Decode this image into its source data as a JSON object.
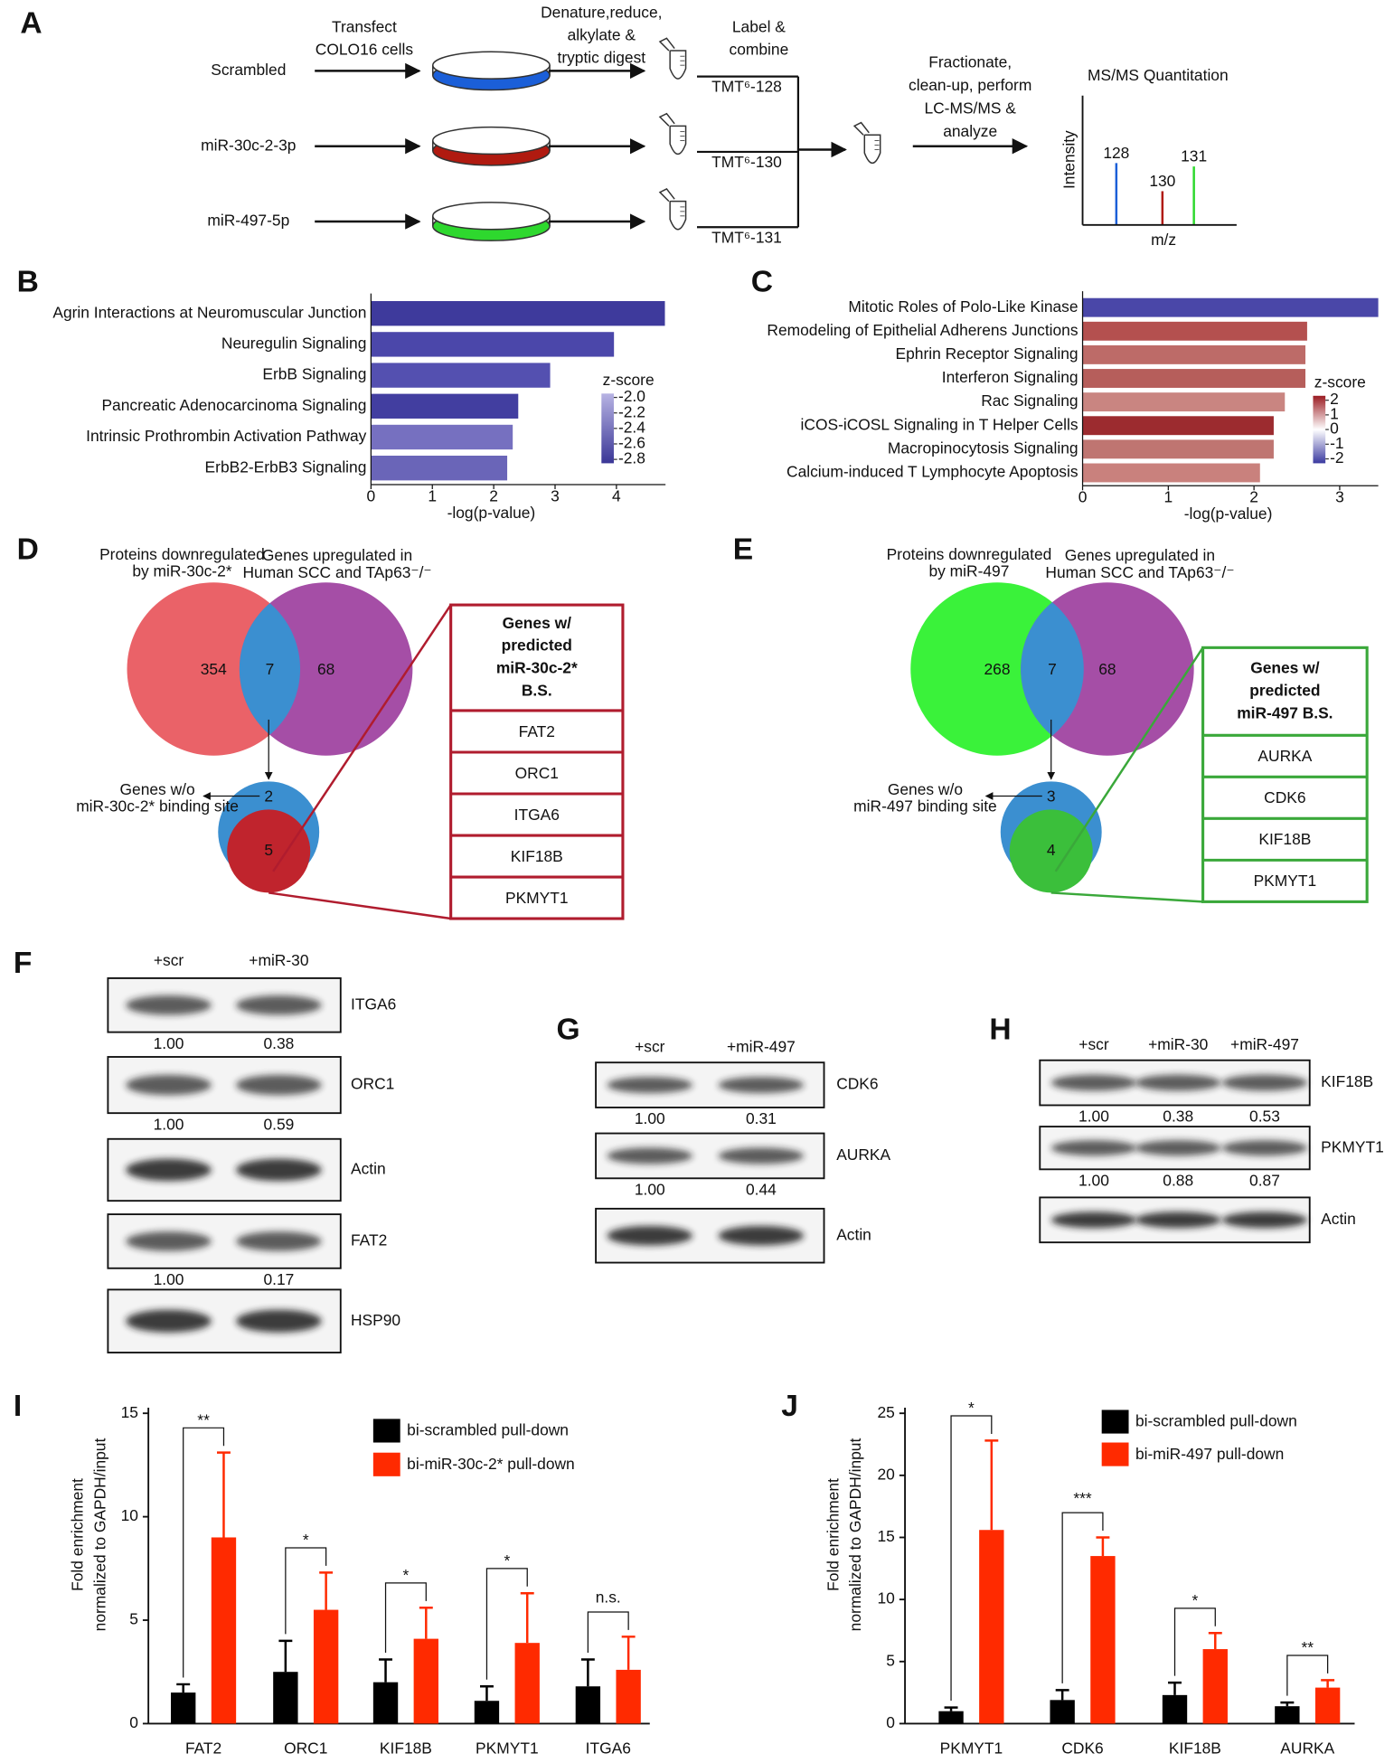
{
  "panel_labels": [
    "A",
    "B",
    "C",
    "D",
    "E",
    "F",
    "G",
    "H",
    "I",
    "J"
  ],
  "diagram": {
    "samples": [
      {
        "name": "Scrambled",
        "color": "#1b5fd8",
        "tag": "TMT⁶-128",
        "peak": "128"
      },
      {
        "name": "miR-30c-2-3p",
        "color": "#b01a10",
        "tag": "TMT⁶-130",
        "peak": "130"
      },
      {
        "name": "miR-497-5p",
        "color": "#2ed82e",
        "tag": "TMT⁶-131",
        "peak": "131"
      }
    ],
    "steps": {
      "transfect": [
        "Transfect",
        "COLO16 cells"
      ],
      "digest": [
        "Denature,reduce,",
        "alkylate &",
        "tryptic digest"
      ],
      "label": [
        "Label &",
        "combine"
      ],
      "fractionate": [
        "Fractionate,",
        "clean-up, perform",
        "LC-MS/MS &",
        "analyze"
      ]
    },
    "quantitation": {
      "title": "MS/MS Quantitation",
      "y_label": "Intensity",
      "x_label": "m/z"
    }
  },
  "venns": [
    {
      "left_label": [
        "Proteins downregulated",
        "by miR-30c-2*"
      ],
      "right_label": [
        "Genes upregulated in",
        "Human SCC and TAp63⁻/⁻"
      ],
      "left_count": 354,
      "overlap_count": 7,
      "right_count": 68,
      "left_color": "#ea6268",
      "right_color": "#a54ea6",
      "overlap_color": "#3b8fd0",
      "without_label": [
        "Genes w/o",
        "miR-30c-2* binding site"
      ],
      "without_count": 2,
      "with_count": 5,
      "with_color": "#c0242d",
      "box_header": [
        "Genes w/",
        "predicted",
        "miR-30c-2*",
        "B.S."
      ],
      "box_items": [
        "FAT2",
        "ORC1",
        "ITGA6",
        "KIF18B",
        "PKMYT1"
      ],
      "box_color": "#b01c2e"
    },
    {
      "left_label": [
        "Proteins downregulated",
        "by miR-497"
      ],
      "right_label": [
        "Genes upregulated in",
        "Human SCC and TAp63⁻/⁻"
      ],
      "left_count": 268,
      "overlap_count": 7,
      "right_count": 68,
      "left_color": "#3af23a",
      "right_color": "#a54ea6",
      "overlap_color": "#3b8fd0",
      "without_label": [
        "Genes w/o",
        "miR-497 binding site"
      ],
      "without_count": 3,
      "with_count": 4,
      "with_color": "#3bbf3b",
      "box_header": [
        "Genes w/",
        "predicted",
        "miR-497 B.S."
      ],
      "box_items": [
        "AURKA",
        "CDK6",
        "KIF18B",
        "PKMYT1"
      ],
      "box_color": "#3aa83a"
    }
  ],
  "blots": [
    {
      "lanes": [
        "+scr",
        "+miR-30"
      ],
      "rows": [
        {
          "name": "ITGA6",
          "quant": [
            "1.00",
            "0.38"
          ]
        },
        {
          "name": "ORC1",
          "quant": [
            "1.00",
            "0.59"
          ]
        },
        {
          "name": "Actin"
        },
        {
          "name": "FAT2",
          "quant": [
            "1.00",
            "0.17"
          ]
        },
        {
          "name": "HSP90"
        }
      ]
    },
    {
      "lanes": [
        "+scr",
        "+miR-497"
      ],
      "rows": [
        {
          "name": "CDK6",
          "quant": [
            "1.00",
            "0.31"
          ]
        },
        {
          "name": "AURKA",
          "quant": [
            "1.00",
            "0.44"
          ]
        },
        {
          "name": "Actin"
        }
      ]
    },
    {
      "lanes": [
        "+scr",
        "+miR-30",
        "+miR-497"
      ],
      "rows": [
        {
          "name": "KIF18B",
          "quant": [
            "1.00",
            "0.38",
            "0.53"
          ]
        },
        {
          "name": "PKMYT1",
          "quant": [
            "1.00",
            "0.88",
            "0.87"
          ]
        },
        {
          "name": "Actin"
        }
      ]
    }
  ],
  "chart_data": [
    {
      "type": "hbar",
      "categories": [
        "Agrin Interactions at Neuromuscular Junction",
        "Neuregulin Signaling",
        "ErbB Signaling",
        "Pancreatic Adenocarcinoma Signaling",
        "Intrinsic Prothrombin Activation Pathway",
        "ErbB2-ErbB3 Signaling"
      ],
      "values": [
        4.79,
        3.96,
        2.92,
        2.4,
        2.31,
        2.22
      ],
      "colors": [
        "#3e3a9c",
        "#4b47aa",
        "#5450b0",
        "#423ea0",
        "#7670c0",
        "#6a65b8"
      ],
      "xlim": [
        0,
        4.8
      ],
      "xticks": [
        0,
        1,
        2,
        3,
        4
      ],
      "x_label": "-log(p-value)",
      "colorbar": {
        "title": "z-score",
        "zlim": [
          -2.85,
          -1.95
        ],
        "colors": [
          "#3a3696",
          "#b7b3e3"
        ],
        "ticks": [
          {
            "value": -2.0,
            "label": "-2.0"
          },
          {
            "value": -2.2,
            "label": "-2.2"
          },
          {
            "value": -2.4,
            "label": "-2.4"
          },
          {
            "value": -2.6,
            "label": "-2.6"
          },
          {
            "value": -2.8,
            "label": "-2.8"
          }
        ]
      }
    },
    {
      "type": "hbar",
      "categories": [
        "Mitotic Roles of Polo-Like Kinase",
        "Remodeling of Epithelial Adherens Junctions",
        "Ephrin Receptor Signaling",
        "Interferon Signaling",
        "Rac Signaling",
        "iCOS-iCOSL Signaling in T Helper Cells",
        "Macropinocytosis Signaling",
        "Calcium-induced T Lymphocyte Apoptosis"
      ],
      "values": [
        3.45,
        2.62,
        2.6,
        2.6,
        2.36,
        2.23,
        2.23,
        2.07
      ],
      "colors": [
        "#4a47a8",
        "#b4504f",
        "#bd6b68",
        "#b65e5b",
        "#c98581",
        "#9c2b2f",
        "#bf7571",
        "#c9817d"
      ],
      "xlim": [
        0,
        3.45
      ],
      "xticks": [
        0,
        1,
        2,
        3
      ],
      "x_label": "-log(p-value)",
      "colorbar": {
        "title": "z-score",
        "zlim": [
          -2.3,
          2.3
        ],
        "colors": [
          "#3b3aa0",
          "#ffffff",
          "#9b1c22"
        ],
        "ticks": [
          2,
          1,
          0,
          -1,
          -2
        ]
      }
    },
    {
      "type": "bar",
      "categories": [
        "FAT2",
        "ORC1",
        "KIF18B",
        "PKMYT1",
        "ITGA6"
      ],
      "series": [
        {
          "name": "bi-scrambled pull-down",
          "color": "#000000",
          "values": [
            1.5,
            2.5,
            2.0,
            1.1,
            1.8
          ],
          "errors": [
            0.4,
            1.5,
            1.1,
            0.7,
            1.3
          ]
        },
        {
          "name": "bi-miR-30c-2* pull-down",
          "color": "#ff2a00",
          "values": [
            9.0,
            5.5,
            4.1,
            3.9,
            2.6
          ],
          "errors": [
            4.1,
            1.8,
            1.5,
            2.4,
            1.6
          ]
        }
      ],
      "ylim": [
        0,
        15
      ],
      "yticks": [
        0,
        5,
        10,
        15
      ],
      "y_label": [
        "Fold enrichment",
        "normalized to GAPDH/input"
      ],
      "significance": [
        "**",
        "*",
        "*",
        "*",
        "n.s."
      ]
    },
    {
      "type": "bar",
      "categories": [
        "PKMYT1",
        "CDK6",
        "KIF18B",
        "AURKA"
      ],
      "series": [
        {
          "name": "bi-scrambled pull-down",
          "color": "#000000",
          "values": [
            1.0,
            1.9,
            2.3,
            1.4
          ],
          "errors": [
            0.3,
            0.8,
            1.0,
            0.3
          ]
        },
        {
          "name": "bi-miR-497 pull-down",
          "color": "#ff2a00",
          "values": [
            15.6,
            13.5,
            6.0,
            2.9
          ],
          "errors": [
            7.2,
            1.5,
            1.3,
            0.6
          ]
        }
      ],
      "ylim": [
        0,
        25
      ],
      "yticks": [
        0,
        5,
        10,
        15,
        20,
        25
      ],
      "y_label": [
        "Fold enrichment",
        "normalized to GAPDH/input"
      ],
      "significance": [
        "*",
        "***",
        "*",
        "**"
      ]
    }
  ]
}
